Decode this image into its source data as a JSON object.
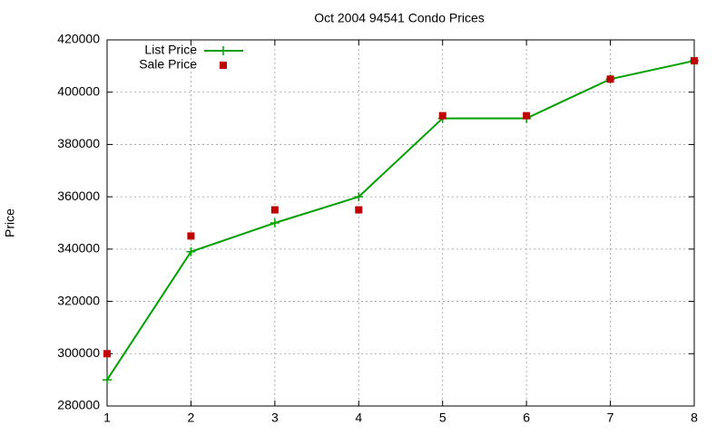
{
  "chart_data": {
    "type": "line",
    "title": "Oct 2004 94541 Condo Prices",
    "y_label": "Price",
    "x": [
      1,
      2,
      3,
      4,
      5,
      6,
      7,
      8
    ],
    "series": [
      {
        "name": "List Price",
        "color": "#00a000",
        "style": "linespoints",
        "values": [
          290000,
          339000,
          350000,
          360000,
          390000,
          390000,
          405000,
          412000
        ]
      },
      {
        "name": "Sale Price",
        "color": "#c00000",
        "style": "points",
        "values": [
          300000,
          345000,
          355000,
          355000,
          391000,
          391000,
          405000,
          412000
        ]
      }
    ],
    "xlim": [
      1,
      8
    ],
    "xticks": [
      1,
      2,
      3,
      4,
      5,
      6,
      7,
      8
    ],
    "ylim": [
      280000,
      420000
    ],
    "yticks": [
      280000,
      300000,
      320000,
      340000,
      360000,
      380000,
      400000,
      420000
    ],
    "grid": true,
    "legend": "top-left"
  }
}
